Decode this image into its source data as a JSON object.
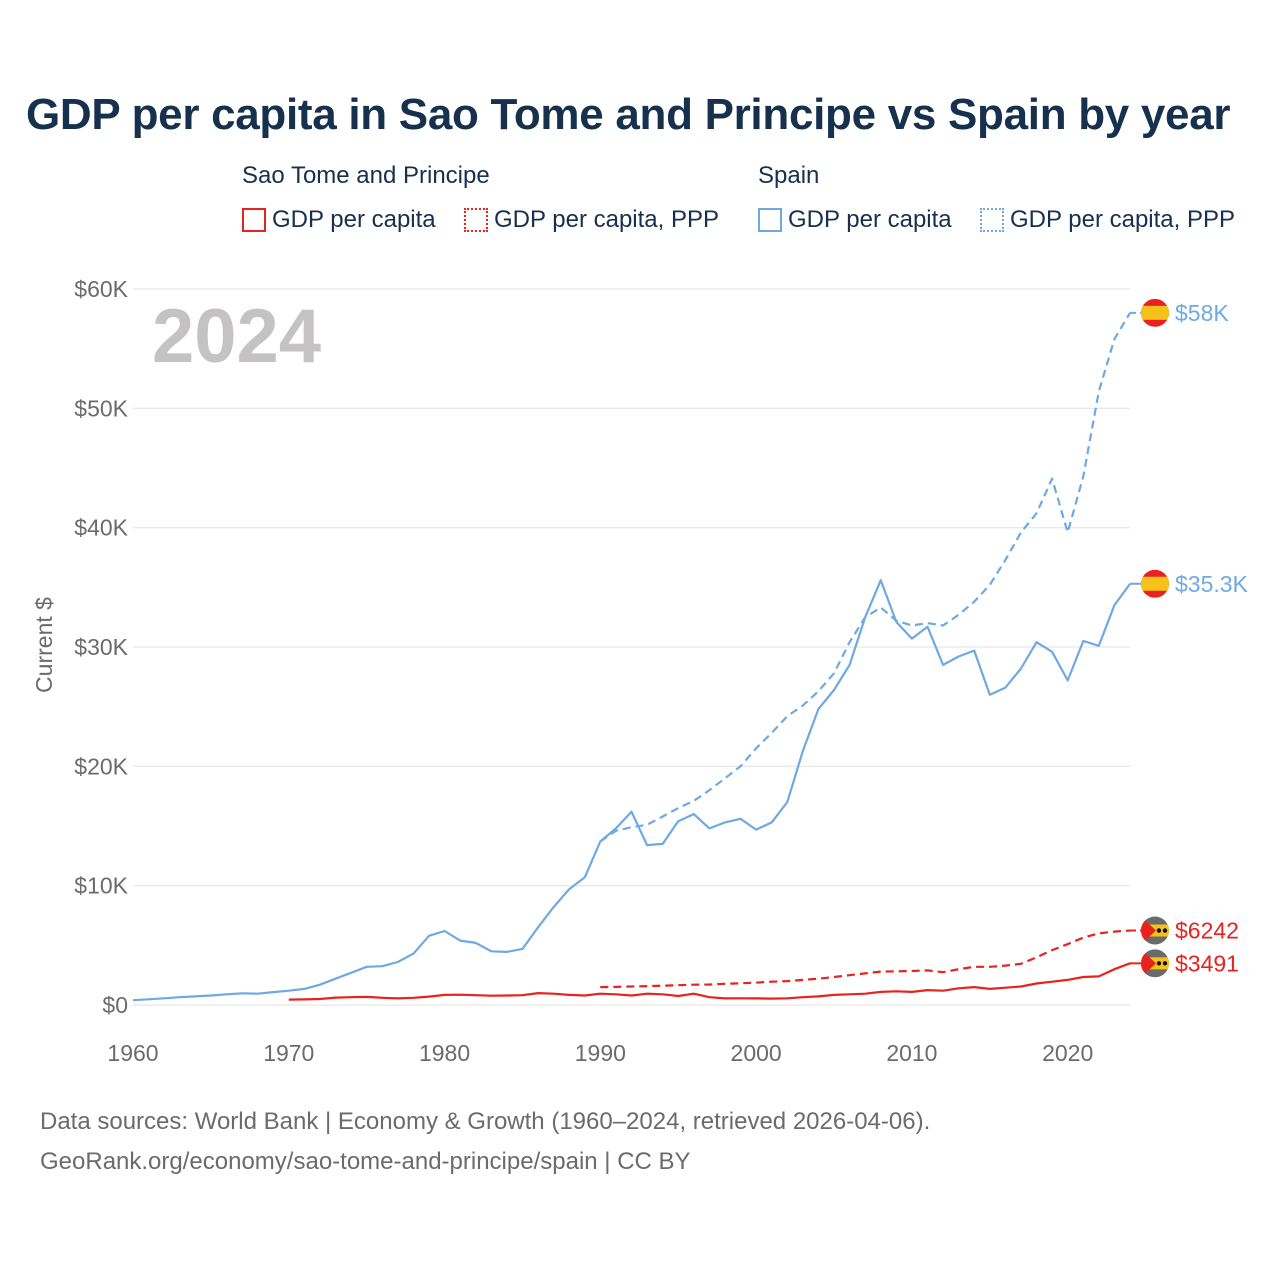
{
  "title": "GDP per capita in Sao Tome and Principe vs Spain by year",
  "legend": {
    "groups": [
      {
        "name": "Sao Tome and Principe",
        "items": [
          "GDP per capita",
          "GDP per capita, PPP"
        ]
      },
      {
        "name": "Spain",
        "items": [
          "GDP per capita",
          "GDP per capita, PPP"
        ]
      }
    ]
  },
  "footer": {
    "line1": "Data sources: World Bank | Economy & Growth (1960–2024, retrieved 2026-04-06).",
    "line2": "GeoRank.org/economy/sao-tome-and-principe/spain | CC BY"
  },
  "colors": {
    "stp": "#e8231f",
    "spain": "#6fa9e2",
    "grid": "#e6e6e6",
    "axis_text": "#6b6b6b",
    "year": "#c4c2c2"
  },
  "chart_data": {
    "type": "line",
    "title": "GDP per capita in Sao Tome and Principe vs Spain by year",
    "xlabel": "",
    "ylabel": "Current $",
    "xlim": [
      1960,
      2024
    ],
    "ylim": [
      0,
      60000
    ],
    "year_watermark": "2024",
    "x_ticks": [
      {
        "value": 1960,
        "label": "1960"
      },
      {
        "value": 1970,
        "label": "1970"
      },
      {
        "value": 1980,
        "label": "1980"
      },
      {
        "value": 1990,
        "label": "1990"
      },
      {
        "value": 2000,
        "label": "2000"
      },
      {
        "value": 2010,
        "label": "2010"
      },
      {
        "value": 2020,
        "label": "2020"
      }
    ],
    "y_ticks": [
      {
        "value": 0,
        "label": "$0"
      },
      {
        "value": 10000,
        "label": "$10K"
      },
      {
        "value": 20000,
        "label": "$20K"
      },
      {
        "value": 30000,
        "label": "$30K"
      },
      {
        "value": 40000,
        "label": "$40K"
      },
      {
        "value": 50000,
        "label": "$50K"
      },
      {
        "value": 60000,
        "label": "$60K"
      }
    ],
    "series": [
      {
        "name": "Spain GDP per capita",
        "country": "Spain",
        "style": "solid",
        "color": "#6fa9e2",
        "end_label": "$35.3K",
        "x": [
          1960,
          1961,
          1962,
          1963,
          1964,
          1965,
          1966,
          1967,
          1968,
          1969,
          1970,
          1971,
          1972,
          1973,
          1974,
          1975,
          1976,
          1977,
          1978,
          1979,
          1980,
          1981,
          1982,
          1983,
          1984,
          1985,
          1986,
          1987,
          1988,
          1989,
          1990,
          1991,
          1992,
          1993,
          1994,
          1995,
          1996,
          1997,
          1998,
          1999,
          2000,
          2001,
          2002,
          2003,
          2004,
          2005,
          2006,
          2007,
          2008,
          2009,
          2010,
          2011,
          2012,
          2013,
          2014,
          2015,
          2016,
          2017,
          2018,
          2019,
          2020,
          2021,
          2022,
          2023,
          2024
        ],
        "values": [
          400,
          480,
          560,
          650,
          720,
          800,
          900,
          980,
          950,
          1080,
          1200,
          1350,
          1700,
          2200,
          2700,
          3200,
          3250,
          3600,
          4300,
          5800,
          6200,
          5400,
          5200,
          4500,
          4450,
          4700,
          6500,
          8200,
          9700,
          10700,
          13700,
          14800,
          16200,
          13400,
          13500,
          15400,
          16000,
          14800,
          15300,
          15600,
          14700,
          15300,
          17000,
          21300,
          24800,
          26400,
          28500,
          32500,
          35600,
          32100,
          30700,
          31700,
          28500,
          29200,
          29700,
          26000,
          26600,
          28200,
          30400,
          29600,
          27200,
          30500,
          30100,
          33500,
          35300
        ]
      },
      {
        "name": "Spain GDP per capita, PPP",
        "country": "Spain",
        "style": "dashed",
        "color": "#6fa9e2",
        "end_label": "$58K",
        "x": [
          1990,
          1991,
          1992,
          1993,
          1994,
          1995,
          1996,
          1997,
          1998,
          1999,
          2000,
          2001,
          2002,
          2003,
          2004,
          2005,
          2006,
          2007,
          2008,
          2009,
          2010,
          2011,
          2012,
          2013,
          2014,
          2015,
          2016,
          2017,
          2018,
          2019,
          2020,
          2021,
          2022,
          2023,
          2024
        ],
        "values": [
          13700,
          14600,
          14900,
          15100,
          15800,
          16500,
          17100,
          18000,
          19000,
          20000,
          21500,
          22800,
          24200,
          25100,
          26300,
          27800,
          30400,
          32500,
          33300,
          32200,
          31800,
          32000,
          31800,
          32700,
          33800,
          35200,
          37300,
          39600,
          41200,
          44100,
          39600,
          44300,
          51400,
          55800,
          58000
        ]
      },
      {
        "name": "Sao Tome and Principe GDP per capita",
        "country": "Sao Tome and Principe",
        "style": "solid",
        "color": "#e8231f",
        "end_label": "$3491",
        "x": [
          1970,
          1971,
          1972,
          1973,
          1974,
          1975,
          1976,
          1977,
          1978,
          1979,
          1980,
          1981,
          1982,
          1983,
          1984,
          1985,
          1986,
          1987,
          1988,
          1989,
          1990,
          1991,
          1992,
          1993,
          1994,
          1995,
          1996,
          1997,
          1998,
          1999,
          2000,
          2001,
          2002,
          2003,
          2004,
          2005,
          2006,
          2007,
          2008,
          2009,
          2010,
          2011,
          2012,
          2013,
          2014,
          2015,
          2016,
          2017,
          2018,
          2019,
          2020,
          2021,
          2022,
          2023,
          2024
        ],
        "values": [
          450,
          470,
          500,
          620,
          650,
          680,
          600,
          550,
          600,
          700,
          850,
          860,
          820,
          780,
          800,
          820,
          1000,
          950,
          850,
          800,
          950,
          900,
          800,
          950,
          900,
          750,
          950,
          650,
          550,
          560,
          550,
          540,
          560,
          650,
          720,
          850,
          900,
          950,
          1100,
          1150,
          1100,
          1250,
          1200,
          1400,
          1500,
          1350,
          1450,
          1550,
          1800,
          1950,
          2100,
          2350,
          2400,
          3000,
          3491
        ]
      },
      {
        "name": "Sao Tome and Principe GDP per capita, PPP",
        "country": "Sao Tome and Principe",
        "style": "dashed",
        "color": "#e8231f",
        "end_label": "$6242",
        "x": [
          1990,
          1991,
          1992,
          1993,
          1994,
          1995,
          1996,
          1997,
          1998,
          1999,
          2000,
          2001,
          2002,
          2003,
          2004,
          2005,
          2006,
          2007,
          2008,
          2009,
          2010,
          2011,
          2012,
          2013,
          2014,
          2015,
          2016,
          2017,
          2018,
          2019,
          2020,
          2021,
          2022,
          2023,
          2024
        ],
        "values": [
          1500,
          1520,
          1550,
          1580,
          1620,
          1660,
          1700,
          1720,
          1780,
          1820,
          1880,
          1950,
          2000,
          2100,
          2200,
          2350,
          2500,
          2650,
          2800,
          2820,
          2850,
          2900,
          2750,
          3000,
          3200,
          3200,
          3300,
          3450,
          4000,
          4600,
          5100,
          5650,
          6000,
          6150,
          6242
        ]
      }
    ]
  }
}
